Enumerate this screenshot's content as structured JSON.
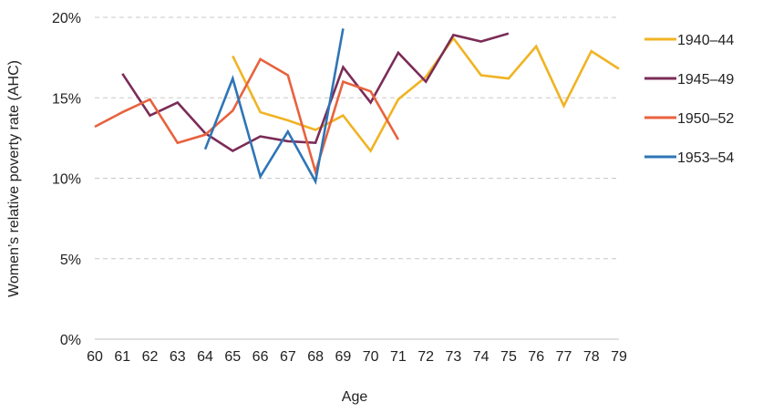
{
  "chart_data": {
    "type": "line",
    "xlabel": "Age",
    "ylabel": "Women’s relative poverty rate (AHC)",
    "x": [
      60,
      61,
      62,
      63,
      64,
      65,
      66,
      67,
      68,
      69,
      70,
      71,
      72,
      73,
      74,
      75,
      76,
      77,
      78,
      79
    ],
    "xlim": [
      60,
      79
    ],
    "ylim": [
      0,
      20
    ],
    "yticks": [
      0,
      5,
      10,
      15,
      20
    ],
    "ytick_labels": [
      "0%",
      "5%",
      "10%",
      "15%",
      "20%"
    ],
    "grid": "horizontal dashed",
    "legend_position": "right",
    "series": [
      {
        "name": "1940–44",
        "color": "#f0b323",
        "points": [
          [
            65,
            17.6
          ],
          [
            66,
            14.1
          ],
          [
            67,
            13.6
          ],
          [
            68,
            13.0
          ],
          [
            69,
            13.9
          ],
          [
            70,
            11.7
          ],
          [
            71,
            14.9
          ],
          [
            72,
            16.3
          ],
          [
            73,
            18.7
          ],
          [
            74,
            16.4
          ],
          [
            75,
            16.2
          ],
          [
            76,
            18.2
          ],
          [
            77,
            14.5
          ],
          [
            78,
            17.9
          ],
          [
            79,
            16.8
          ]
        ]
      },
      {
        "name": "1945–49",
        "color": "#7b2c57",
        "points": [
          [
            61,
            16.5
          ],
          [
            62,
            13.9
          ],
          [
            63,
            14.7
          ],
          [
            64,
            12.8
          ],
          [
            65,
            11.7
          ],
          [
            66,
            12.6
          ],
          [
            67,
            12.3
          ],
          [
            68,
            12.2
          ],
          [
            69,
            16.9
          ],
          [
            70,
            14.7
          ],
          [
            71,
            17.8
          ],
          [
            72,
            16.0
          ],
          [
            73,
            18.9
          ],
          [
            74,
            18.5
          ],
          [
            75,
            19.0
          ]
        ]
      },
      {
        "name": "1950–52",
        "color": "#e8623e",
        "points": [
          [
            60,
            13.2
          ],
          [
            61,
            14.1
          ],
          [
            62,
            14.9
          ],
          [
            63,
            12.2
          ],
          [
            64,
            12.7
          ],
          [
            65,
            14.2
          ],
          [
            66,
            17.4
          ],
          [
            67,
            16.4
          ],
          [
            68,
            10.4
          ],
          [
            69,
            16.0
          ],
          [
            70,
            15.4
          ],
          [
            71,
            12.4
          ]
        ]
      },
      {
        "name": "1953–54",
        "color": "#2e75b6",
        "points": [
          [
            64,
            11.8
          ],
          [
            65,
            16.2
          ],
          [
            66,
            10.1
          ],
          [
            67,
            12.9
          ],
          [
            68,
            9.8
          ],
          [
            69,
            19.3
          ]
        ]
      }
    ]
  }
}
